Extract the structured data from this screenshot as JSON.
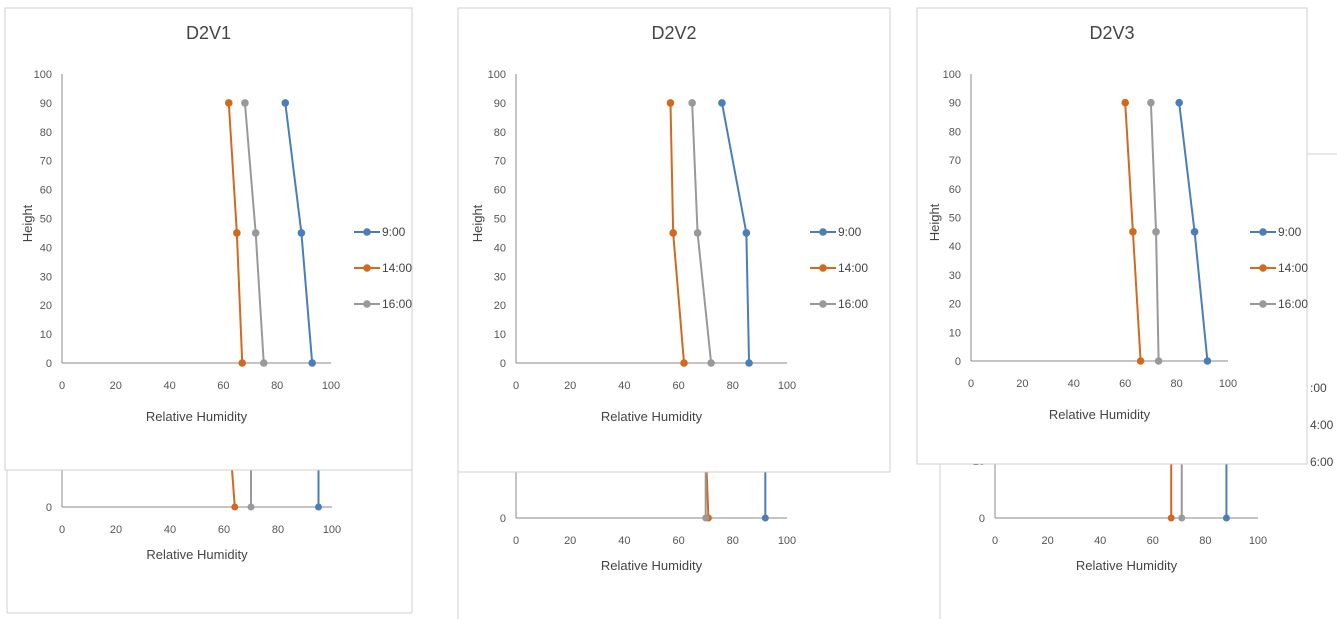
{
  "chart_data": [
    {
      "type": "line",
      "title": "D2V1",
      "xlabel": "Relative Humidity",
      "ylabel": "Height",
      "xlim": [
        0,
        100
      ],
      "ylim": [
        0,
        100
      ],
      "xticks": [
        0,
        20,
        40,
        60,
        80,
        100
      ],
      "yticks": [
        0,
        10,
        20,
        30,
        40,
        50,
        60,
        70,
        80,
        90,
        100
      ],
      "grid": false,
      "legend_position": "right",
      "series": [
        {
          "name": "9:00",
          "color": "#4a7ebb",
          "points": [
            [
              93,
              0
            ],
            [
              89,
              45
            ],
            [
              83,
              90
            ]
          ]
        },
        {
          "name": "14:00",
          "color": "#d2691e",
          "points": [
            [
              67,
              0
            ],
            [
              65,
              45
            ],
            [
              62,
              90
            ]
          ]
        },
        {
          "name": "16:00",
          "color": "#999999",
          "points": [
            [
              75,
              0
            ],
            [
              72,
              45
            ],
            [
              68,
              90
            ]
          ]
        }
      ]
    },
    {
      "type": "line",
      "title": "D2V2",
      "xlabel": "Relative Humidity",
      "ylabel": "Height",
      "xlim": [
        0,
        100
      ],
      "ylim": [
        0,
        100
      ],
      "xticks": [
        0,
        20,
        40,
        60,
        80,
        100
      ],
      "yticks": [
        0,
        10,
        20,
        30,
        40,
        50,
        60,
        70,
        80,
        90,
        100
      ],
      "grid": false,
      "legend_position": "right",
      "series": [
        {
          "name": "9:00",
          "color": "#4a7ebb",
          "points": [
            [
              86,
              0
            ],
            [
              85,
              45
            ],
            [
              76,
              90
            ]
          ]
        },
        {
          "name": "14:00",
          "color": "#d2691e",
          "points": [
            [
              62,
              0
            ],
            [
              58,
              45
            ],
            [
              57,
              90
            ]
          ]
        },
        {
          "name": "16:00",
          "color": "#999999",
          "points": [
            [
              72,
              0
            ],
            [
              67,
              45
            ],
            [
              65,
              90
            ]
          ]
        }
      ]
    },
    {
      "type": "line",
      "title": "D2V3",
      "xlabel": "Relative Humidity",
      "ylabel": "Height",
      "xlim": [
        0,
        100
      ],
      "ylim": [
        0,
        100
      ],
      "xticks": [
        0,
        20,
        40,
        60,
        80,
        100
      ],
      "yticks": [
        0,
        10,
        20,
        30,
        40,
        50,
        60,
        70,
        80,
        90,
        100
      ],
      "grid": false,
      "legend_position": "right",
      "series": [
        {
          "name": "9:00",
          "color": "#4a7ebb",
          "points": [
            [
              92,
              0
            ],
            [
              87,
              45
            ],
            [
              81,
              90
            ]
          ]
        },
        {
          "name": "14:00",
          "color": "#d2691e",
          "points": [
            [
              66,
              0
            ],
            [
              63,
              45
            ],
            [
              60,
              90
            ]
          ]
        },
        {
          "name": "16:00",
          "color": "#999999",
          "points": [
            [
              73,
              0
            ],
            [
              72,
              45
            ],
            [
              70,
              90
            ]
          ]
        }
      ]
    },
    {
      "type": "line",
      "partial": true,
      "xlabel": "Relative Humidity",
      "xlim": [
        0,
        100
      ],
      "xticks": [
        0,
        20,
        40,
        60,
        80,
        100
      ],
      "yticks": [
        0,
        10
      ],
      "series": [
        {
          "color": "#4a7ebb",
          "points": [
            [
              95,
              0
            ],
            [
              95,
              20
            ]
          ]
        },
        {
          "color": "#d2691e",
          "points": [
            [
              64,
              0
            ],
            [
              62,
              20
            ]
          ]
        },
        {
          "color": "#999999",
          "points": [
            [
              70,
              0
            ],
            [
              70,
              20
            ]
          ]
        }
      ]
    },
    {
      "type": "line",
      "partial": true,
      "xlabel": "Relative Humidity",
      "xlim": [
        0,
        100
      ],
      "xticks": [
        0,
        20,
        40,
        60,
        80,
        100
      ],
      "yticks": [
        0,
        10
      ],
      "series": [
        {
          "color": "#4a7ebb",
          "points": [
            [
              92,
              0
            ],
            [
              92,
              20
            ]
          ]
        },
        {
          "color": "#d2691e",
          "points": [
            [
              71,
              0
            ],
            [
              70,
              20
            ]
          ]
        },
        {
          "color": "#999999",
          "points": [
            [
              70,
              0
            ],
            [
              70,
              20
            ]
          ]
        }
      ]
    },
    {
      "type": "line",
      "partial": true,
      "xlabel": "Relative Humidity",
      "xlim": [
        0,
        100
      ],
      "xticks": [
        0,
        20,
        40,
        60,
        80,
        100
      ],
      "yticks": [
        0,
        10
      ],
      "series": [
        {
          "color": "#4a7ebb",
          "points": [
            [
              88,
              0
            ],
            [
              88,
              20
            ]
          ]
        },
        {
          "color": "#d2691e",
          "points": [
            [
              67,
              0
            ],
            [
              67,
              20
            ]
          ]
        },
        {
          "color": "#999999",
          "points": [
            [
              71,
              0
            ],
            [
              71,
              20
            ]
          ]
        }
      ]
    }
  ],
  "clipped_legend_labels": [
    ":00",
    "4:00",
    "6:00"
  ]
}
